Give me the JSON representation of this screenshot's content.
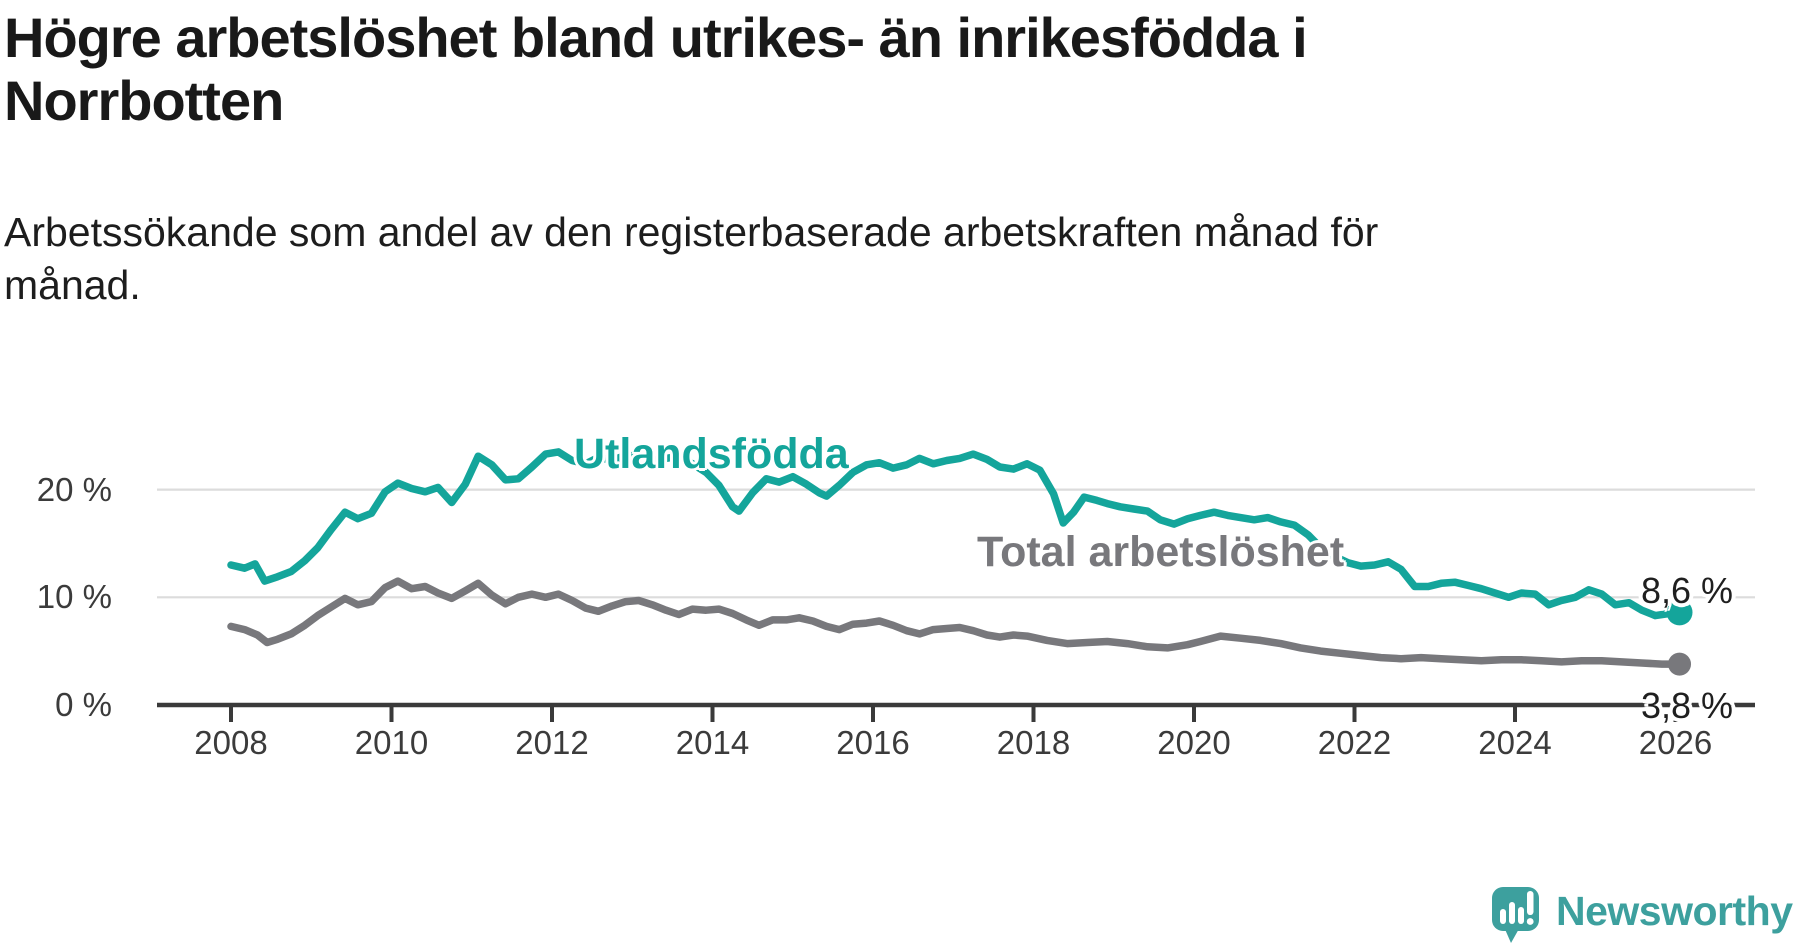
{
  "title": {
    "line1": "Högre arbetslöshet bland utrikes- än inrikesfödda i",
    "line2": "Norrbotten"
  },
  "subtitle": {
    "line1": "Arbetssökande som andel av den registerbaserade arbetskraften månad för",
    "line2": "månad."
  },
  "chart_data": {
    "type": "line",
    "unit": "%",
    "grid": "horizontal-only",
    "x_axis": {
      "tick_years": [
        2008,
        2010,
        2012,
        2014,
        2016,
        2018,
        2020,
        2022,
        2024,
        2026
      ],
      "range": [
        2007.1,
        2027.0
      ]
    },
    "y_axis": {
      "ticks": [
        {
          "value": 0,
          "label": "0 %"
        },
        {
          "value": 10,
          "label": "10 %"
        },
        {
          "value": 20,
          "label": "20 %"
        }
      ],
      "ylim": [
        0,
        25
      ]
    },
    "series": [
      {
        "name": "Utlandsfödda",
        "color": "#14a59b",
        "end_label": "8,6 %",
        "end_value": 8.6,
        "points": [
          [
            2008.0,
            13.0
          ],
          [
            2008.17,
            12.7
          ],
          [
            2008.3,
            13.1
          ],
          [
            2008.42,
            11.5
          ],
          [
            2008.58,
            11.9
          ],
          [
            2008.75,
            12.4
          ],
          [
            2008.92,
            13.4
          ],
          [
            2009.08,
            14.6
          ],
          [
            2009.25,
            16.3
          ],
          [
            2009.42,
            17.9
          ],
          [
            2009.58,
            17.3
          ],
          [
            2009.75,
            17.8
          ],
          [
            2009.92,
            19.8
          ],
          [
            2010.08,
            20.6
          ],
          [
            2010.25,
            20.1
          ],
          [
            2010.42,
            19.8
          ],
          [
            2010.58,
            20.2
          ],
          [
            2010.75,
            18.8
          ],
          [
            2010.92,
            20.5
          ],
          [
            2011.08,
            23.1
          ],
          [
            2011.25,
            22.3
          ],
          [
            2011.42,
            20.9
          ],
          [
            2011.58,
            21.0
          ],
          [
            2011.75,
            22.1
          ],
          [
            2011.92,
            23.3
          ],
          [
            2012.08,
            23.5
          ],
          [
            2012.25,
            22.7
          ],
          [
            2012.42,
            22.4
          ],
          [
            2012.58,
            23.0
          ],
          [
            2012.75,
            22.7
          ],
          [
            2012.92,
            23.2
          ],
          [
            2013.08,
            23.3
          ],
          [
            2013.25,
            22.7
          ],
          [
            2013.42,
            22.9
          ],
          [
            2013.58,
            23.1
          ],
          [
            2013.75,
            22.4
          ],
          [
            2013.92,
            21.6
          ],
          [
            2014.08,
            20.4
          ],
          [
            2014.25,
            18.4
          ],
          [
            2014.33,
            18.0
          ],
          [
            2014.5,
            19.7
          ],
          [
            2014.67,
            21.0
          ],
          [
            2014.83,
            20.7
          ],
          [
            2015.0,
            21.2
          ],
          [
            2015.17,
            20.5
          ],
          [
            2015.33,
            19.7
          ],
          [
            2015.42,
            19.4
          ],
          [
            2015.58,
            20.4
          ],
          [
            2015.75,
            21.6
          ],
          [
            2015.92,
            22.3
          ],
          [
            2016.08,
            22.5
          ],
          [
            2016.25,
            22.0
          ],
          [
            2016.42,
            22.3
          ],
          [
            2016.58,
            22.9
          ],
          [
            2016.75,
            22.4
          ],
          [
            2016.92,
            22.7
          ],
          [
            2017.08,
            22.9
          ],
          [
            2017.25,
            23.3
          ],
          [
            2017.42,
            22.8
          ],
          [
            2017.58,
            22.1
          ],
          [
            2017.75,
            21.9
          ],
          [
            2017.92,
            22.4
          ],
          [
            2018.08,
            21.8
          ],
          [
            2018.25,
            19.6
          ],
          [
            2018.37,
            16.9
          ],
          [
            2018.5,
            17.9
          ],
          [
            2018.63,
            19.3
          ],
          [
            2018.79,
            19.0
          ],
          [
            2018.92,
            18.7
          ],
          [
            2019.08,
            18.4
          ],
          [
            2019.25,
            18.2
          ],
          [
            2019.42,
            18.0
          ],
          [
            2019.58,
            17.2
          ],
          [
            2019.75,
            16.8
          ],
          [
            2019.92,
            17.3
          ],
          [
            2020.08,
            17.6
          ],
          [
            2020.25,
            17.9
          ],
          [
            2020.42,
            17.6
          ],
          [
            2020.58,
            17.4
          ],
          [
            2020.75,
            17.2
          ],
          [
            2020.92,
            17.4
          ],
          [
            2021.08,
            17.0
          ],
          [
            2021.25,
            16.7
          ],
          [
            2021.42,
            15.8
          ],
          [
            2021.58,
            14.6
          ],
          [
            2021.75,
            13.8
          ],
          [
            2021.92,
            13.2
          ],
          [
            2022.08,
            12.9
          ],
          [
            2022.25,
            13.0
          ],
          [
            2022.42,
            13.3
          ],
          [
            2022.58,
            12.6
          ],
          [
            2022.75,
            11.0
          ],
          [
            2022.92,
            11.0
          ],
          [
            2023.08,
            11.3
          ],
          [
            2023.25,
            11.4
          ],
          [
            2023.42,
            11.1
          ],
          [
            2023.58,
            10.8
          ],
          [
            2023.75,
            10.4
          ],
          [
            2023.92,
            10.0
          ],
          [
            2024.08,
            10.4
          ],
          [
            2024.25,
            10.3
          ],
          [
            2024.42,
            9.3
          ],
          [
            2024.58,
            9.7
          ],
          [
            2024.75,
            10.0
          ],
          [
            2024.92,
            10.7
          ],
          [
            2025.08,
            10.3
          ],
          [
            2025.25,
            9.3
          ],
          [
            2025.42,
            9.5
          ],
          [
            2025.58,
            8.8
          ],
          [
            2025.75,
            8.3
          ],
          [
            2025.92,
            8.5
          ],
          [
            2026.05,
            8.6
          ]
        ]
      },
      {
        "name": "Total arbetslöshet",
        "color": "#78787c",
        "end_label": "3,8 %",
        "end_value": 3.8,
        "points": [
          [
            2008.0,
            7.3
          ],
          [
            2008.17,
            7.0
          ],
          [
            2008.33,
            6.5
          ],
          [
            2008.45,
            5.8
          ],
          [
            2008.58,
            6.1
          ],
          [
            2008.75,
            6.6
          ],
          [
            2008.92,
            7.4
          ],
          [
            2009.08,
            8.3
          ],
          [
            2009.25,
            9.1
          ],
          [
            2009.42,
            9.9
          ],
          [
            2009.58,
            9.3
          ],
          [
            2009.75,
            9.6
          ],
          [
            2009.92,
            10.9
          ],
          [
            2010.08,
            11.5
          ],
          [
            2010.25,
            10.8
          ],
          [
            2010.42,
            11.0
          ],
          [
            2010.58,
            10.4
          ],
          [
            2010.75,
            9.9
          ],
          [
            2010.92,
            10.6
          ],
          [
            2011.08,
            11.3
          ],
          [
            2011.25,
            10.2
          ],
          [
            2011.42,
            9.4
          ],
          [
            2011.58,
            10.0
          ],
          [
            2011.75,
            10.3
          ],
          [
            2011.92,
            10.0
          ],
          [
            2012.08,
            10.3
          ],
          [
            2012.25,
            9.7
          ],
          [
            2012.42,
            9.0
          ],
          [
            2012.58,
            8.7
          ],
          [
            2012.75,
            9.2
          ],
          [
            2012.92,
            9.6
          ],
          [
            2013.08,
            9.7
          ],
          [
            2013.25,
            9.3
          ],
          [
            2013.42,
            8.8
          ],
          [
            2013.58,
            8.4
          ],
          [
            2013.75,
            8.9
          ],
          [
            2013.92,
            8.8
          ],
          [
            2014.08,
            8.9
          ],
          [
            2014.25,
            8.5
          ],
          [
            2014.42,
            7.9
          ],
          [
            2014.58,
            7.4
          ],
          [
            2014.75,
            7.9
          ],
          [
            2014.92,
            7.9
          ],
          [
            2015.08,
            8.1
          ],
          [
            2015.25,
            7.8
          ],
          [
            2015.42,
            7.3
          ],
          [
            2015.58,
            7.0
          ],
          [
            2015.75,
            7.5
          ],
          [
            2015.92,
            7.6
          ],
          [
            2016.08,
            7.8
          ],
          [
            2016.25,
            7.4
          ],
          [
            2016.42,
            6.9
          ],
          [
            2016.58,
            6.6
          ],
          [
            2016.75,
            7.0
          ],
          [
            2016.92,
            7.1
          ],
          [
            2017.08,
            7.2
          ],
          [
            2017.25,
            6.9
          ],
          [
            2017.42,
            6.5
          ],
          [
            2017.58,
            6.3
          ],
          [
            2017.75,
            6.5
          ],
          [
            2017.92,
            6.4
          ],
          [
            2018.17,
            6.0
          ],
          [
            2018.42,
            5.7
          ],
          [
            2018.67,
            5.8
          ],
          [
            2018.92,
            5.9
          ],
          [
            2019.17,
            5.7
          ],
          [
            2019.42,
            5.4
          ],
          [
            2019.67,
            5.3
          ],
          [
            2019.92,
            5.6
          ],
          [
            2020.08,
            5.9
          ],
          [
            2020.33,
            6.4
          ],
          [
            2020.58,
            6.2
          ],
          [
            2020.83,
            6.0
          ],
          [
            2021.08,
            5.7
          ],
          [
            2021.33,
            5.3
          ],
          [
            2021.58,
            5.0
          ],
          [
            2021.83,
            4.8
          ],
          [
            2022.08,
            4.6
          ],
          [
            2022.33,
            4.4
          ],
          [
            2022.58,
            4.3
          ],
          [
            2022.83,
            4.4
          ],
          [
            2023.08,
            4.3
          ],
          [
            2023.33,
            4.2
          ],
          [
            2023.58,
            4.1
          ],
          [
            2023.83,
            4.2
          ],
          [
            2024.08,
            4.2
          ],
          [
            2024.33,
            4.1
          ],
          [
            2024.58,
            4.0
          ],
          [
            2024.83,
            4.1
          ],
          [
            2025.08,
            4.1
          ],
          [
            2025.33,
            4.0
          ],
          [
            2025.58,
            3.9
          ],
          [
            2025.83,
            3.8
          ],
          [
            2026.05,
            3.8
          ]
        ]
      }
    ],
    "colors": {
      "axis": "#3a3a3a",
      "gridline": "#dcdcdc",
      "tick_label": "#3b3b3b"
    }
  },
  "branding": {
    "logo_text": "Newsworthy",
    "logo_color": "#3da09e"
  }
}
